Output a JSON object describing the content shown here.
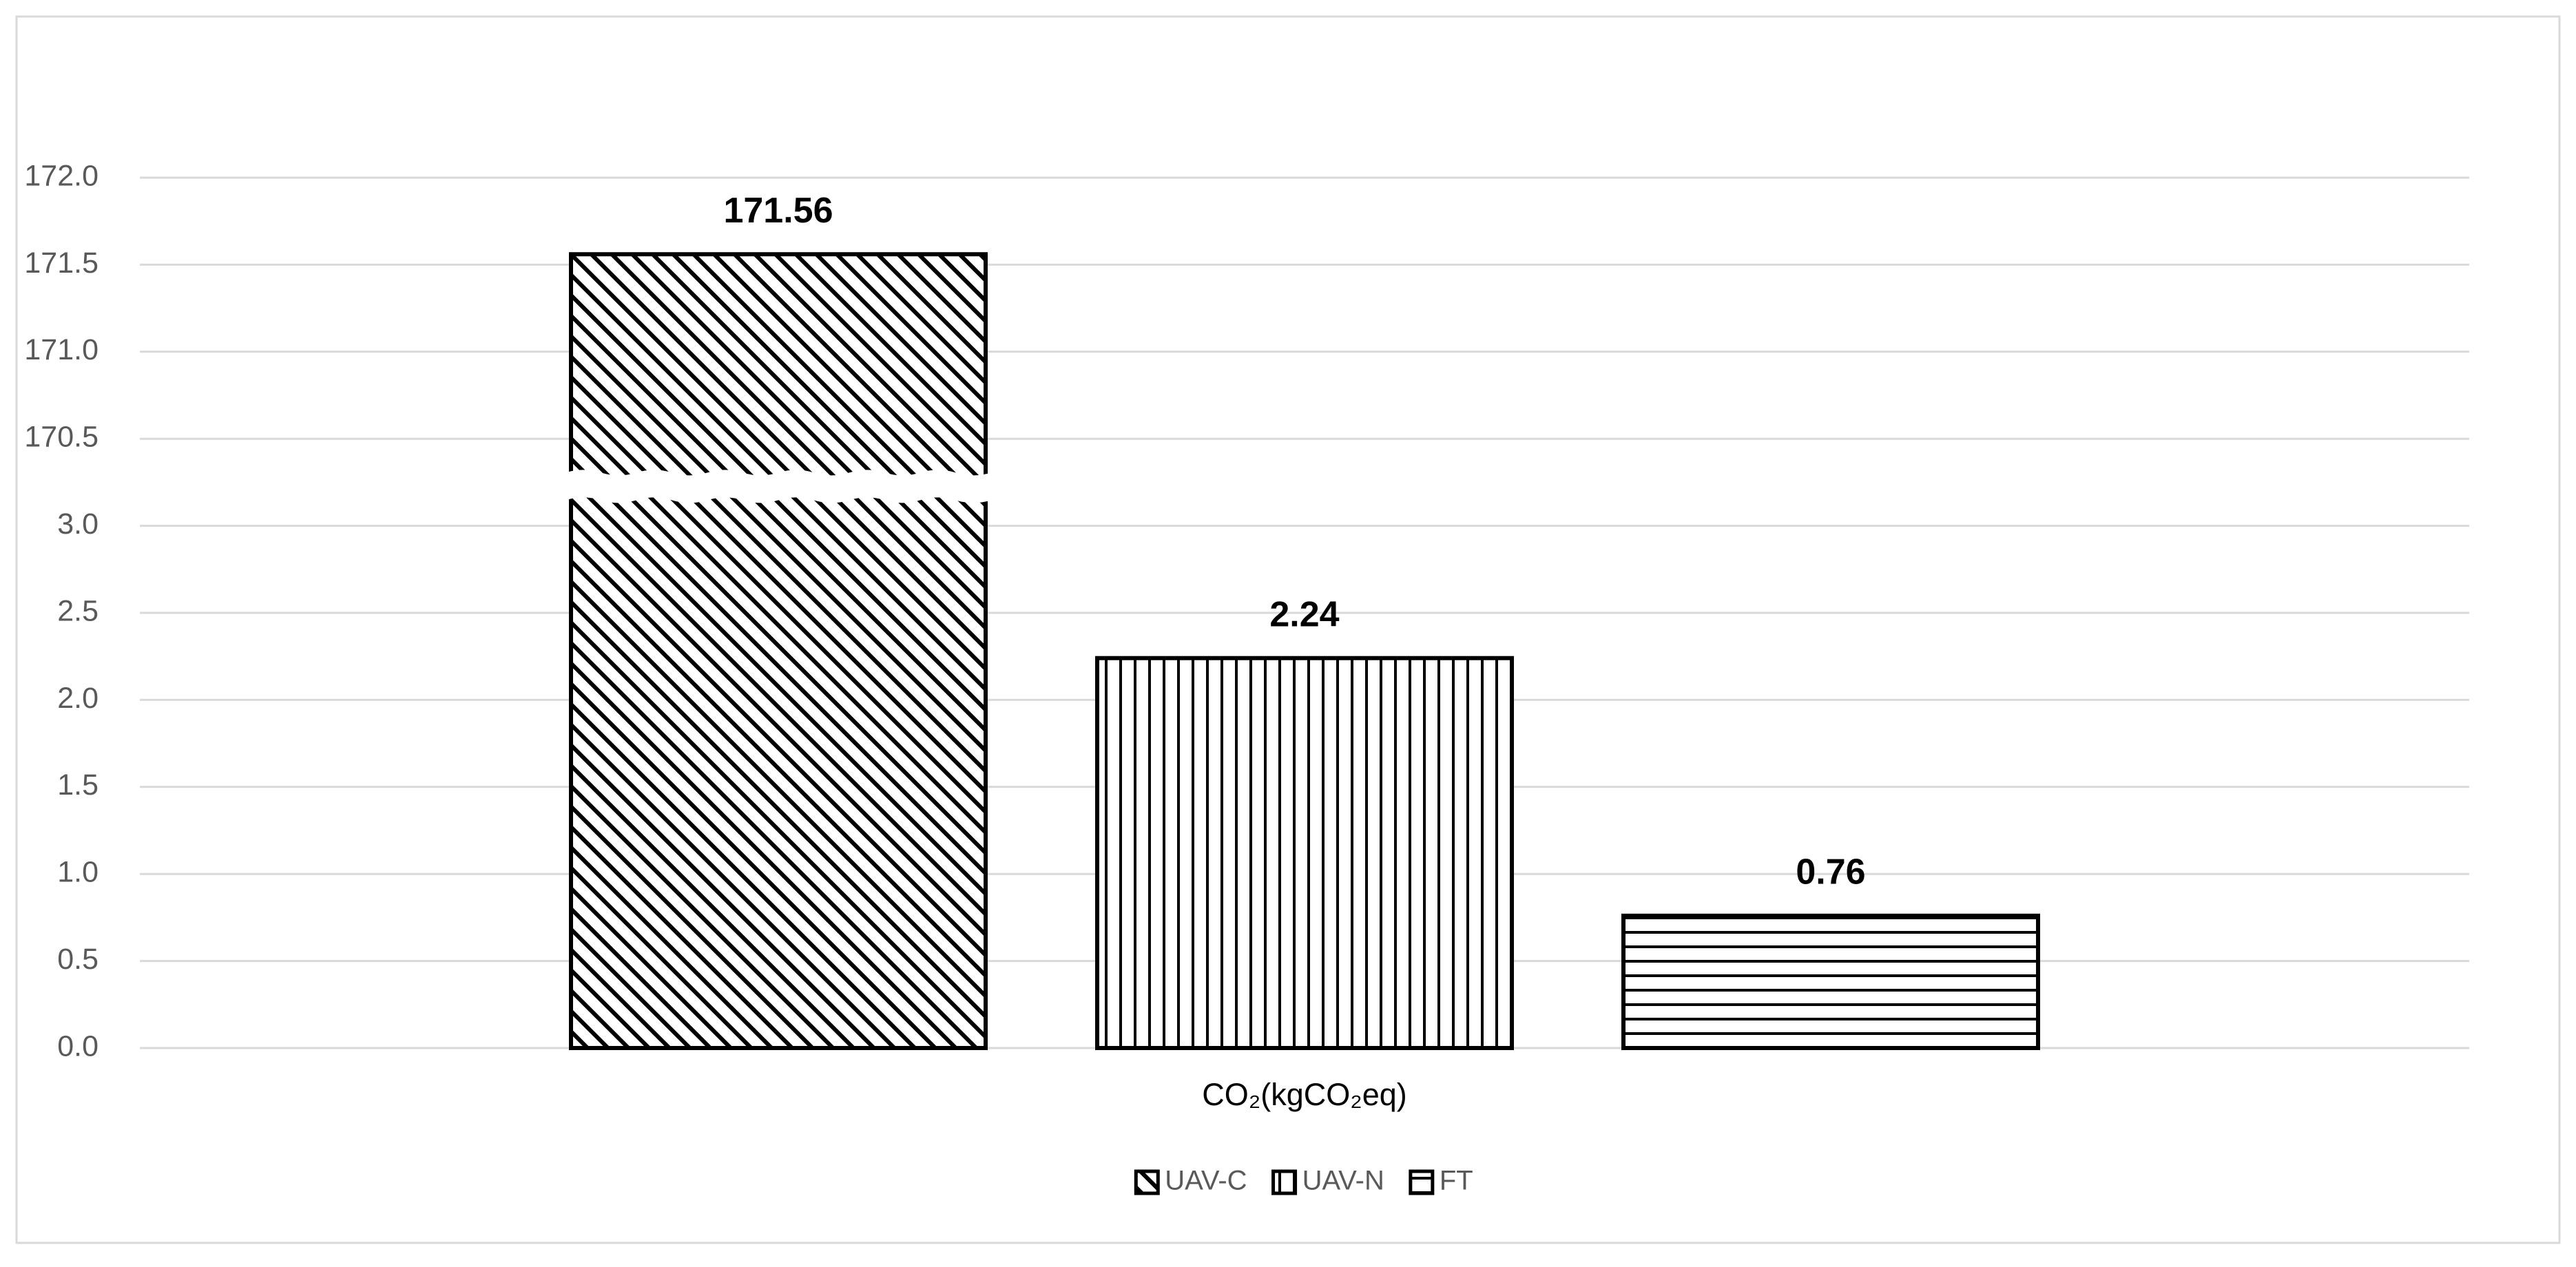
{
  "chart_data": {
    "type": "bar",
    "categories": [
      "CO₂(kgCO₂eq)"
    ],
    "series": [
      {
        "name": "UAV-C",
        "color": "#000000",
        "pattern": "diagonal",
        "values": [
          171.56
        ]
      },
      {
        "name": "UAV-N",
        "color": "#000000",
        "pattern": "vertical",
        "values": [
          2.24
        ]
      },
      {
        "name": "FT",
        "color": "#000000",
        "pattern": "horizontal",
        "values": [
          0.76
        ]
      }
    ],
    "y_segments": [
      {
        "ylim": [
          0,
          3.25
        ],
        "yticks": [
          {
            "value": 0,
            "label": "0.0"
          },
          0.5,
          {
            "value": 1,
            "label": "1.0"
          },
          1.5,
          {
            "value": 2,
            "label": "2.0"
          },
          2.5,
          {
            "value": 3,
            "label": "3.0"
          }
        ]
      },
      {
        "ylim": [
          170.25,
          172
        ],
        "yticks": [
          170.5,
          {
            "value": 171,
            "label": "171.0"
          },
          171.5,
          {
            "value": 172,
            "label": "172.0"
          }
        ]
      }
    ],
    "axis_break": true,
    "grid": true,
    "legend": "bottom"
  }
}
